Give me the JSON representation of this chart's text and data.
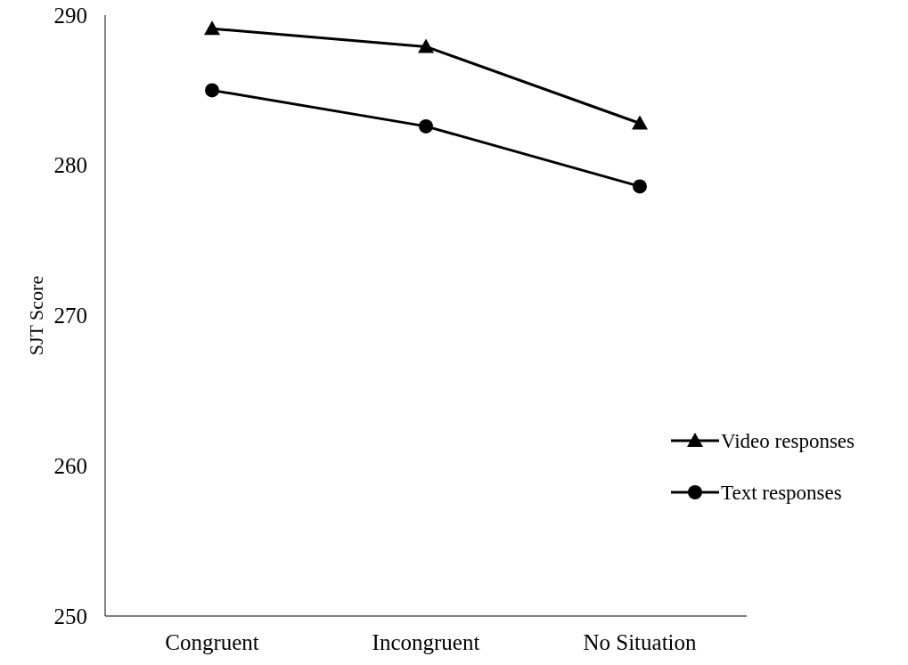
{
  "chart_data": {
    "type": "line",
    "ylabel": "SJT Score",
    "categories": [
      "Congruent",
      "Incongruent",
      "No Situation"
    ],
    "series": [
      {
        "name": "Video responses",
        "color": "#000000",
        "marker": "triangle",
        "values": [
          289.1,
          287.9,
          282.8
        ]
      },
      {
        "name": "Text responses",
        "color": "#000000",
        "marker": "circle",
        "values": [
          285.0,
          282.6,
          278.6
        ]
      }
    ],
    "ylim": [
      250,
      290
    ],
    "yticks": [
      250,
      260,
      270,
      280,
      290
    ],
    "grid": false,
    "legend": "right",
    "line_style": "solid"
  }
}
